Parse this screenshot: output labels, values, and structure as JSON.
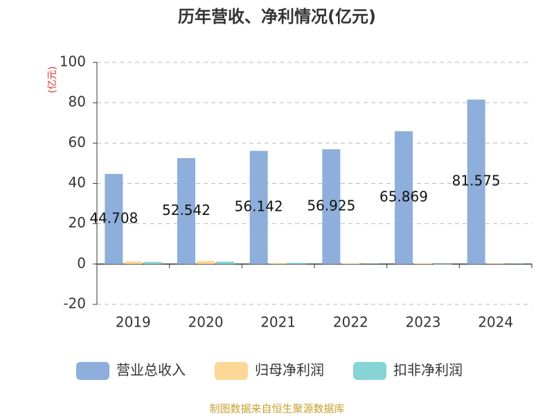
{
  "chart_data": {
    "type": "bar",
    "title": "历年营收、净利情况(亿元)",
    "y_label": "(亿元)",
    "categories": [
      "2019",
      "2020",
      "2021",
      "2022",
      "2023",
      "2024"
    ],
    "series": [
      {
        "name": "营业总收入",
        "color": "#8eaedb",
        "values": [
          44.708,
          52.542,
          56.142,
          56.925,
          65.869,
          81.575
        ]
      },
      {
        "name": "归母净利润",
        "color": "#fdd795",
        "values": [
          1.3,
          1.5,
          0.5,
          0.3,
          0.3,
          0.2
        ]
      },
      {
        "name": "扣非净利润",
        "color": "#86d4d6",
        "values": [
          1.1,
          1.2,
          0.6,
          0.1,
          -0.3,
          0.1
        ]
      }
    ],
    "ylim": [
      -20,
      100
    ],
    "yticks": [
      -20,
      0,
      20,
      40,
      60,
      80,
      100
    ],
    "grid": true,
    "source": "制图数据来自恒生聚源数据库"
  }
}
